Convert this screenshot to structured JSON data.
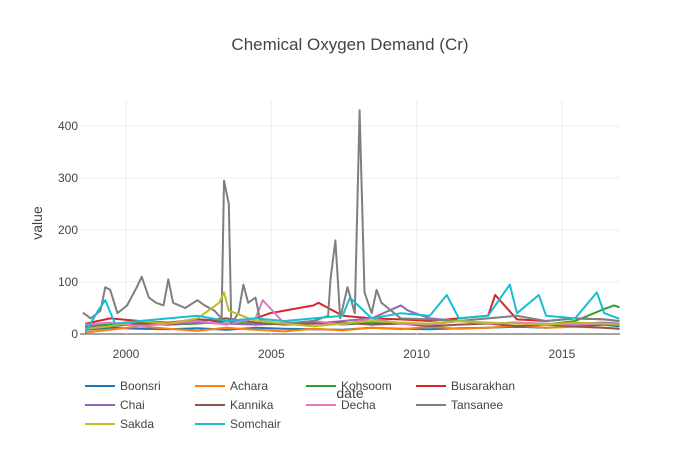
{
  "chart_data": {
    "type": "line",
    "title": "Chemical Oxygen Demand (Cr)",
    "xlabel": "date",
    "ylabel": "value",
    "xlim": [
      "1998-06-01",
      "2016-12-31"
    ],
    "ylim": [
      0,
      450
    ],
    "x_ticks": [
      "2000",
      "2005",
      "2010",
      "2015"
    ],
    "y_ticks": [
      0,
      100,
      200,
      300,
      400
    ],
    "grid": true,
    "legend_position": "bottom",
    "series": [
      {
        "name": "Boonsri",
        "color": "#1f77b4",
        "points": [
          [
            "1998-08",
            8
          ],
          [
            "1999-06",
            12
          ],
          [
            "2000-06",
            10
          ],
          [
            "2001-06",
            9
          ],
          [
            "2002-06",
            11
          ],
          [
            "2003-06",
            8
          ],
          [
            "2004-06",
            12
          ],
          [
            "2005-06",
            10
          ],
          [
            "2006-06",
            9
          ],
          [
            "2007-06",
            8
          ],
          [
            "2008-06",
            12
          ],
          [
            "2009-06",
            10
          ],
          [
            "2010-06",
            9
          ],
          [
            "2011-06",
            11
          ],
          [
            "2012-06",
            12
          ],
          [
            "2013-06",
            14
          ],
          [
            "2014-06",
            12
          ],
          [
            "2015-06",
            15
          ],
          [
            "2016-06",
            18
          ],
          [
            "2016-12",
            15
          ]
        ]
      },
      {
        "name": "Achara",
        "color": "#ff7f0e",
        "points": [
          [
            "1998-08",
            3
          ],
          [
            "1999-06",
            8
          ],
          [
            "2000-06",
            15
          ],
          [
            "2001-06",
            10
          ],
          [
            "2002-06",
            6
          ],
          [
            "2003-06",
            12
          ],
          [
            "2004-06",
            8
          ],
          [
            "2005-06",
            5
          ],
          [
            "2006-06",
            10
          ],
          [
            "2007-06",
            7
          ],
          [
            "2008-06",
            12
          ],
          [
            "2009-06",
            9
          ],
          [
            "2010-06",
            14
          ],
          [
            "2011-06",
            10
          ],
          [
            "2012-06",
            12
          ],
          [
            "2013-06",
            16
          ],
          [
            "2014-06",
            12
          ],
          [
            "2015-06",
            14
          ],
          [
            "2016-06",
            12
          ],
          [
            "2016-12",
            10
          ]
        ]
      },
      {
        "name": "Kohsoom",
        "color": "#2ca02c",
        "points": [
          [
            "1998-08",
            15
          ],
          [
            "1999-06",
            18
          ],
          [
            "2000-06",
            22
          ],
          [
            "2001-06",
            18
          ],
          [
            "2002-06",
            20
          ],
          [
            "2003-06",
            25
          ],
          [
            "2004-06",
            18
          ],
          [
            "2005-06",
            20
          ],
          [
            "2006-06",
            24
          ],
          [
            "2007-06",
            18
          ],
          [
            "2008-06",
            22
          ],
          [
            "2009-06",
            20
          ],
          [
            "2010-06",
            18
          ],
          [
            "2011-06",
            25
          ],
          [
            "2012-06",
            20
          ],
          [
            "2013-06",
            22
          ],
          [
            "2014-06",
            18
          ],
          [
            "2015-06",
            25
          ],
          [
            "2016-06",
            48
          ],
          [
            "2016-10",
            55
          ],
          [
            "2016-12",
            52
          ]
        ]
      },
      {
        "name": "Busarakhan",
        "color": "#d62728",
        "points": [
          [
            "1998-08",
            20
          ],
          [
            "1999-06",
            30
          ],
          [
            "2000-06",
            25
          ],
          [
            "2001-06",
            22
          ],
          [
            "2002-06",
            28
          ],
          [
            "2003-06",
            25
          ],
          [
            "2004-06",
            30
          ],
          [
            "2004-12",
            40
          ],
          [
            "2005-06",
            45
          ],
          [
            "2006-06",
            55
          ],
          [
            "2006-08",
            60
          ],
          [
            "2007-06",
            35
          ],
          [
            "2008-06",
            30
          ],
          [
            "2009-06",
            28
          ],
          [
            "2010-06",
            25
          ],
          [
            "2011-06",
            30
          ],
          [
            "2012-06",
            35
          ],
          [
            "2012-09",
            75
          ],
          [
            "2013-06",
            28
          ],
          [
            "2014-06",
            25
          ],
          [
            "2015-06",
            30
          ],
          [
            "2016-06",
            28
          ],
          [
            "2016-12",
            25
          ]
        ]
      },
      {
        "name": "Chai",
        "color": "#9467bd",
        "points": [
          [
            "1998-08",
            12
          ],
          [
            "1999-06",
            15
          ],
          [
            "2000-06",
            20
          ],
          [
            "2001-06",
            18
          ],
          [
            "2002-06",
            22
          ],
          [
            "2003-06",
            20
          ],
          [
            "2004-06",
            18
          ],
          [
            "2005-06",
            22
          ],
          [
            "2006-06",
            20
          ],
          [
            "2007-06",
            25
          ],
          [
            "2008-06",
            30
          ],
          [
            "2009-06",
            55
          ],
          [
            "2009-09",
            45
          ],
          [
            "2010-06",
            30
          ],
          [
            "2011-06",
            25
          ],
          [
            "2012-06",
            20
          ],
          [
            "2013-06",
            22
          ],
          [
            "2014-06",
            18
          ],
          [
            "2015-06",
            20
          ],
          [
            "2016-06",
            22
          ],
          [
            "2016-12",
            20
          ]
        ]
      },
      {
        "name": "Kannika",
        "color": "#8c564b",
        "points": [
          [
            "1998-08",
            10
          ],
          [
            "1999-06",
            15
          ],
          [
            "2000-06",
            20
          ],
          [
            "2001-06",
            18
          ],
          [
            "2002-06",
            25
          ],
          [
            "2003-06",
            30
          ],
          [
            "2004-06",
            22
          ],
          [
            "2005-06",
            18
          ],
          [
            "2006-06",
            20
          ],
          [
            "2007-06",
            22
          ],
          [
            "2008-06",
            18
          ],
          [
            "2009-06",
            20
          ],
          [
            "2010-06",
            15
          ],
          [
            "2011-06",
            18
          ],
          [
            "2012-06",
            20
          ],
          [
            "2013-06",
            15
          ],
          [
            "2014-06",
            18
          ],
          [
            "2015-06",
            15
          ],
          [
            "2016-06",
            12
          ],
          [
            "2016-12",
            10
          ]
        ]
      },
      {
        "name": "Decha",
        "color": "#e377c2",
        "points": [
          [
            "1998-08",
            18
          ],
          [
            "1999-06",
            22
          ],
          [
            "2000-06",
            15
          ],
          [
            "2001-06",
            20
          ],
          [
            "2002-06",
            25
          ],
          [
            "2003-06",
            18
          ],
          [
            "2004-06",
            30
          ],
          [
            "2004-09",
            65
          ],
          [
            "2005-06",
            20
          ],
          [
            "2006-06",
            25
          ],
          [
            "2007-06",
            18
          ],
          [
            "2008-06",
            30
          ],
          [
            "2009-06",
            20
          ],
          [
            "2010-06",
            18
          ],
          [
            "2011-06",
            25
          ],
          [
            "2012-06",
            20
          ],
          [
            "2013-06",
            22
          ],
          [
            "2014-06",
            20
          ],
          [
            "2015-06",
            18
          ],
          [
            "2016-06",
            20
          ],
          [
            "2016-12",
            18
          ]
        ]
      },
      {
        "name": "Tansanee",
        "color": "#7f7f7f",
        "points": [
          [
            "1998-07",
            40
          ],
          [
            "1998-10",
            30
          ],
          [
            "1999-02",
            45
          ],
          [
            "1999-04",
            90
          ],
          [
            "1999-06",
            85
          ],
          [
            "1999-09",
            40
          ],
          [
            "2000-01",
            55
          ],
          [
            "2000-05",
            90
          ],
          [
            "2000-07",
            110
          ],
          [
            "2000-10",
            70
          ],
          [
            "2001-01",
            60
          ],
          [
            "2001-04",
            55
          ],
          [
            "2001-06",
            105
          ],
          [
            "2001-08",
            60
          ],
          [
            "2002-01",
            50
          ],
          [
            "2002-06",
            65
          ],
          [
            "2002-09",
            55
          ],
          [
            "2003-01",
            45
          ],
          [
            "2003-04",
            30
          ],
          [
            "2003-05",
            295
          ],
          [
            "2003-07",
            250
          ],
          [
            "2003-08",
            20
          ],
          [
            "2003-11",
            40
          ],
          [
            "2004-01",
            95
          ],
          [
            "2004-03",
            60
          ],
          [
            "2004-06",
            70
          ],
          [
            "2004-08",
            25
          ],
          [
            "2005-06",
            20
          ],
          [
            "2006-06",
            25
          ],
          [
            "2006-12",
            35
          ],
          [
            "2007-01",
            105
          ],
          [
            "2007-03",
            180
          ],
          [
            "2007-05",
            30
          ],
          [
            "2007-08",
            90
          ],
          [
            "2007-11",
            40
          ],
          [
            "2008-01",
            430
          ],
          [
            "2008-03",
            80
          ],
          [
            "2008-06",
            40
          ],
          [
            "2008-08",
            85
          ],
          [
            "2008-10",
            60
          ],
          [
            "2009-06",
            30
          ],
          [
            "2010-06",
            28
          ],
          [
            "2011-06",
            25
          ],
          [
            "2012-06",
            30
          ],
          [
            "2013-06",
            35
          ],
          [
            "2014-06",
            25
          ],
          [
            "2015-06",
            30
          ],
          [
            "2016-06",
            28
          ],
          [
            "2016-12",
            25
          ]
        ]
      },
      {
        "name": "Sakda",
        "color": "#bcbd22",
        "points": [
          [
            "1998-08",
            10
          ],
          [
            "1999-06",
            15
          ],
          [
            "2000-06",
            25
          ],
          [
            "2001-06",
            20
          ],
          [
            "2002-06",
            30
          ],
          [
            "2003-03",
            60
          ],
          [
            "2003-05",
            80
          ],
          [
            "2003-07",
            45
          ],
          [
            "2004-06",
            25
          ],
          [
            "2005-06",
            20
          ],
          [
            "2006-06",
            15
          ],
          [
            "2007-06",
            20
          ],
          [
            "2008-06",
            25
          ],
          [
            "2009-06",
            22
          ],
          [
            "2010-06",
            20
          ],
          [
            "2011-06",
            25
          ],
          [
            "2012-06",
            22
          ],
          [
            "2013-06",
            20
          ],
          [
            "2014-06",
            18
          ],
          [
            "2015-06",
            22
          ],
          [
            "2016-06",
            20
          ],
          [
            "2016-12",
            18
          ]
        ]
      },
      {
        "name": "Somchair",
        "color": "#17becf",
        "points": [
          [
            "1998-08",
            5
          ],
          [
            "1999-01",
            45
          ],
          [
            "1999-04",
            65
          ],
          [
            "1999-08",
            20
          ],
          [
            "2000-06",
            25
          ],
          [
            "2001-06",
            30
          ],
          [
            "2002-06",
            35
          ],
          [
            "2003-06",
            25
          ],
          [
            "2004-06",
            30
          ],
          [
            "2005-06",
            25
          ],
          [
            "2006-06",
            30
          ],
          [
            "2007-06",
            35
          ],
          [
            "2007-09",
            70
          ],
          [
            "2008-06",
            30
          ],
          [
            "2009-06",
            40
          ],
          [
            "2010-06",
            35
          ],
          [
            "2011-01",
            75
          ],
          [
            "2011-06",
            30
          ],
          [
            "2012-06",
            35
          ],
          [
            "2013-03",
            95
          ],
          [
            "2013-06",
            40
          ],
          [
            "2014-03",
            75
          ],
          [
            "2014-06",
            35
          ],
          [
            "2015-06",
            30
          ],
          [
            "2016-03",
            80
          ],
          [
            "2016-06",
            40
          ],
          [
            "2016-12",
            30
          ]
        ]
      }
    ]
  }
}
